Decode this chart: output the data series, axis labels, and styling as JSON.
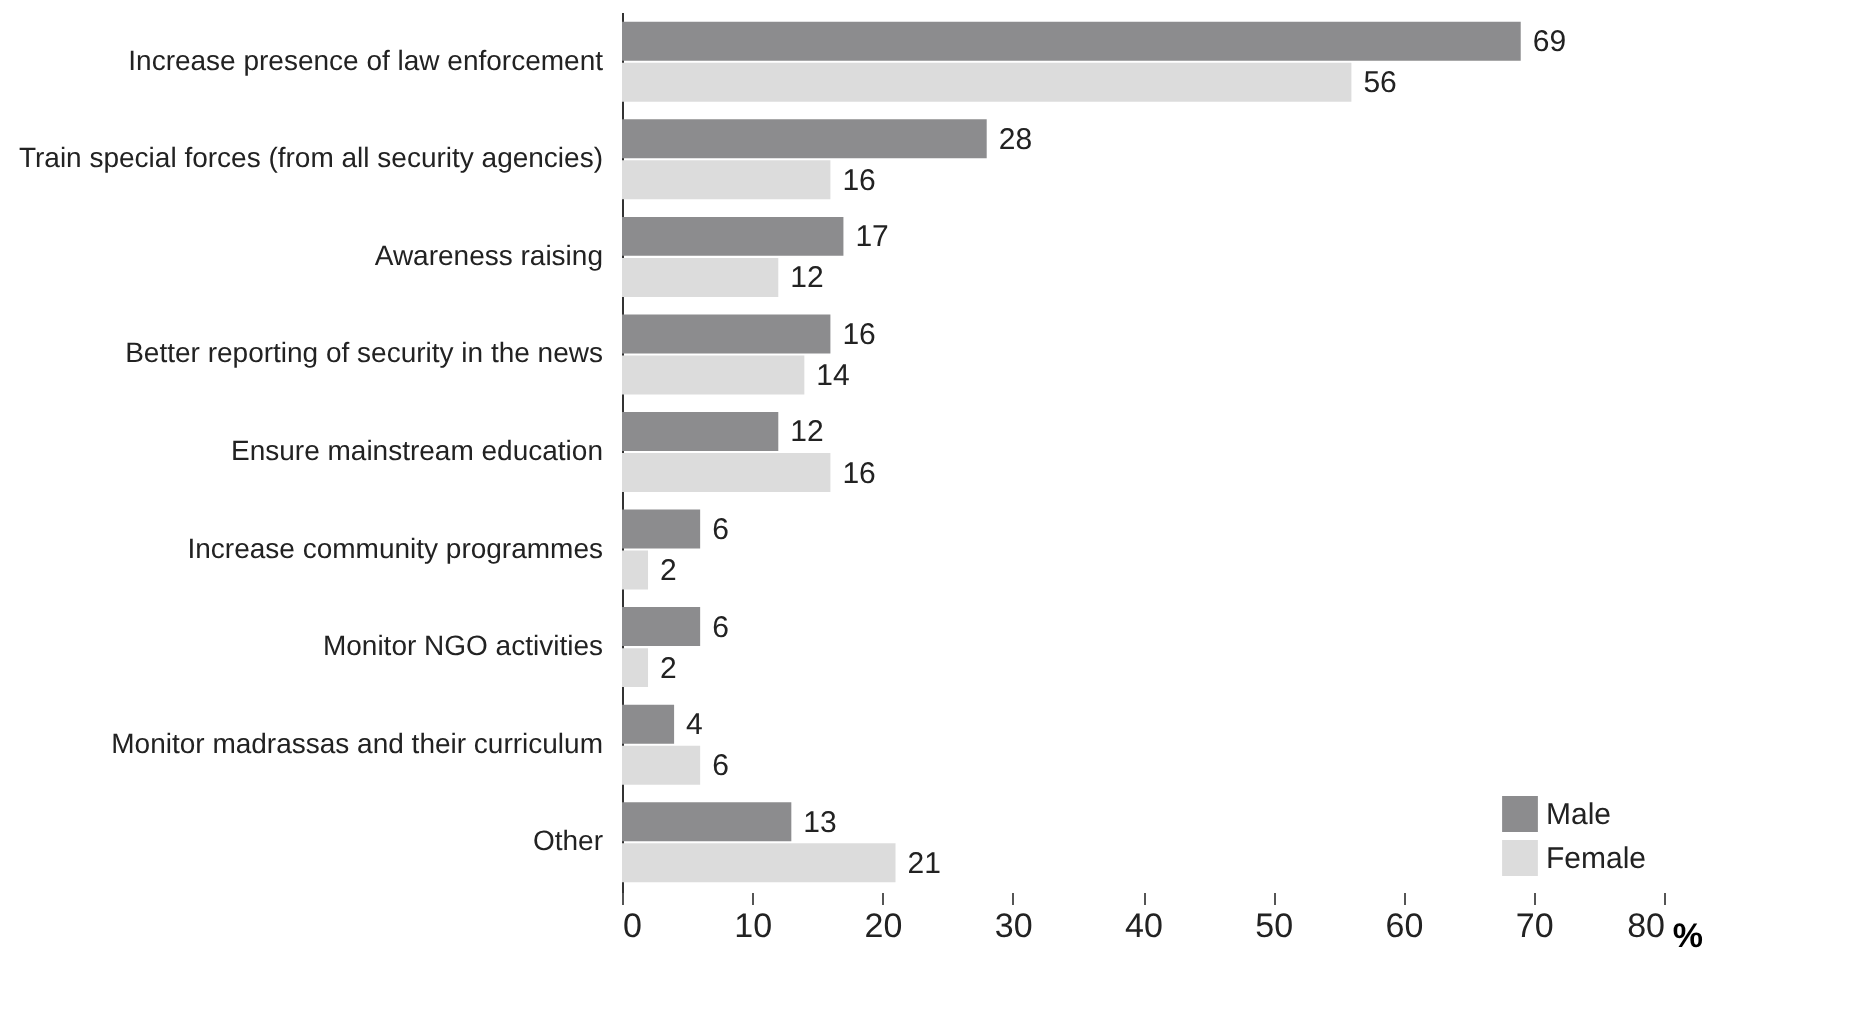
{
  "chart_data": {
    "type": "bar",
    "orientation": "horizontal",
    "xlabel": "%",
    "categories": [
      "Increase presence of law enforcement",
      "Train special forces (from all security agencies)",
      "Awareness raising",
      "Better reporting of security in the news",
      "Ensure mainstream education",
      "Increase community programmes",
      "Monitor NGO activities",
      "Monitor madrassas and their curriculum",
      "Other"
    ],
    "series": [
      {
        "name": "Male",
        "color": "#8c8c8e",
        "values": [
          69,
          28,
          17,
          16,
          12,
          6,
          6,
          4,
          13
        ]
      },
      {
        "name": "Female",
        "color": "#dcdcdc",
        "values": [
          56,
          16,
          12,
          14,
          16,
          2,
          2,
          6,
          21
        ]
      }
    ],
    "xlim": [
      0,
      80
    ],
    "xticks": [
      0,
      10,
      20,
      30,
      40,
      50,
      60,
      70,
      80
    ],
    "data_labels": true,
    "legend": "bottom right",
    "grid": false
  }
}
